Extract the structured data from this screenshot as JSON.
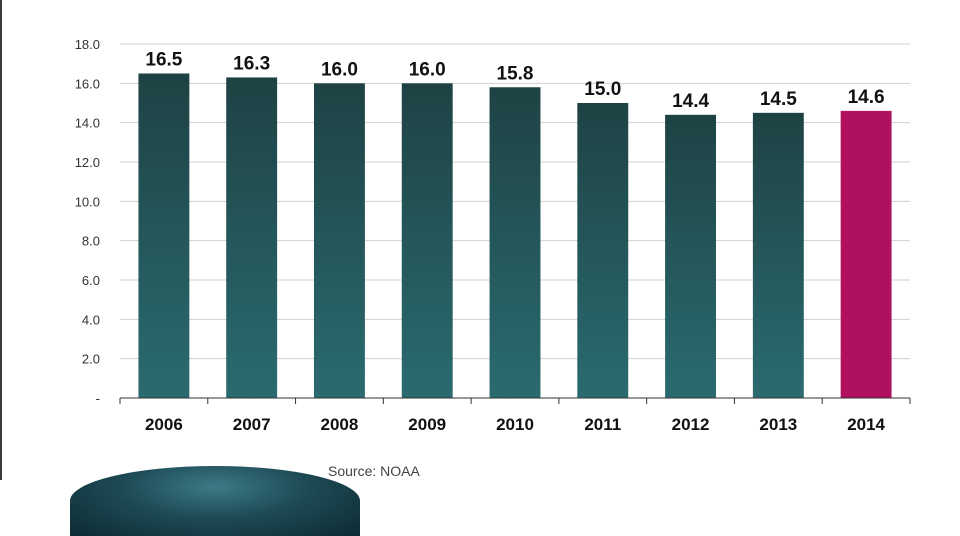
{
  "chart_data": {
    "type": "bar",
    "categories": [
      "2006",
      "2007",
      "2008",
      "2009",
      "2010",
      "2011",
      "2012",
      "2013",
      "2014"
    ],
    "values": [
      16.5,
      16.3,
      16.0,
      16.0,
      15.8,
      15.0,
      14.4,
      14.5,
      14.6
    ],
    "data_labels": [
      "16.5",
      "16.3",
      "16.0",
      "16.0",
      "15.8",
      "15.0",
      "14.4",
      "14.5",
      "14.6"
    ],
    "title": "",
    "xlabel": "",
    "ylabel": "",
    "ylim": [
      0,
      18
    ],
    "yticks": [
      0,
      2,
      4,
      6,
      8,
      10,
      12,
      14,
      16,
      18
    ],
    "ytick_labels": [
      "-",
      "2.0",
      "4.0",
      "6.0",
      "8.0",
      "10.0",
      "12.0",
      "14.0",
      "16.0",
      "18.0"
    ],
    "grid": true,
    "legend": "none",
    "colors": {
      "bar_top": "#1e4244",
      "bar_bottom": "#2a6b70",
      "highlight": "#b0115f",
      "grid": "#d0d0d0",
      "axis": "#333333"
    },
    "highlight_category": "2014"
  },
  "source": {
    "label": "Source: NOAA"
  },
  "decor": {
    "logo_icon": "blue-arc-logo-icon"
  }
}
